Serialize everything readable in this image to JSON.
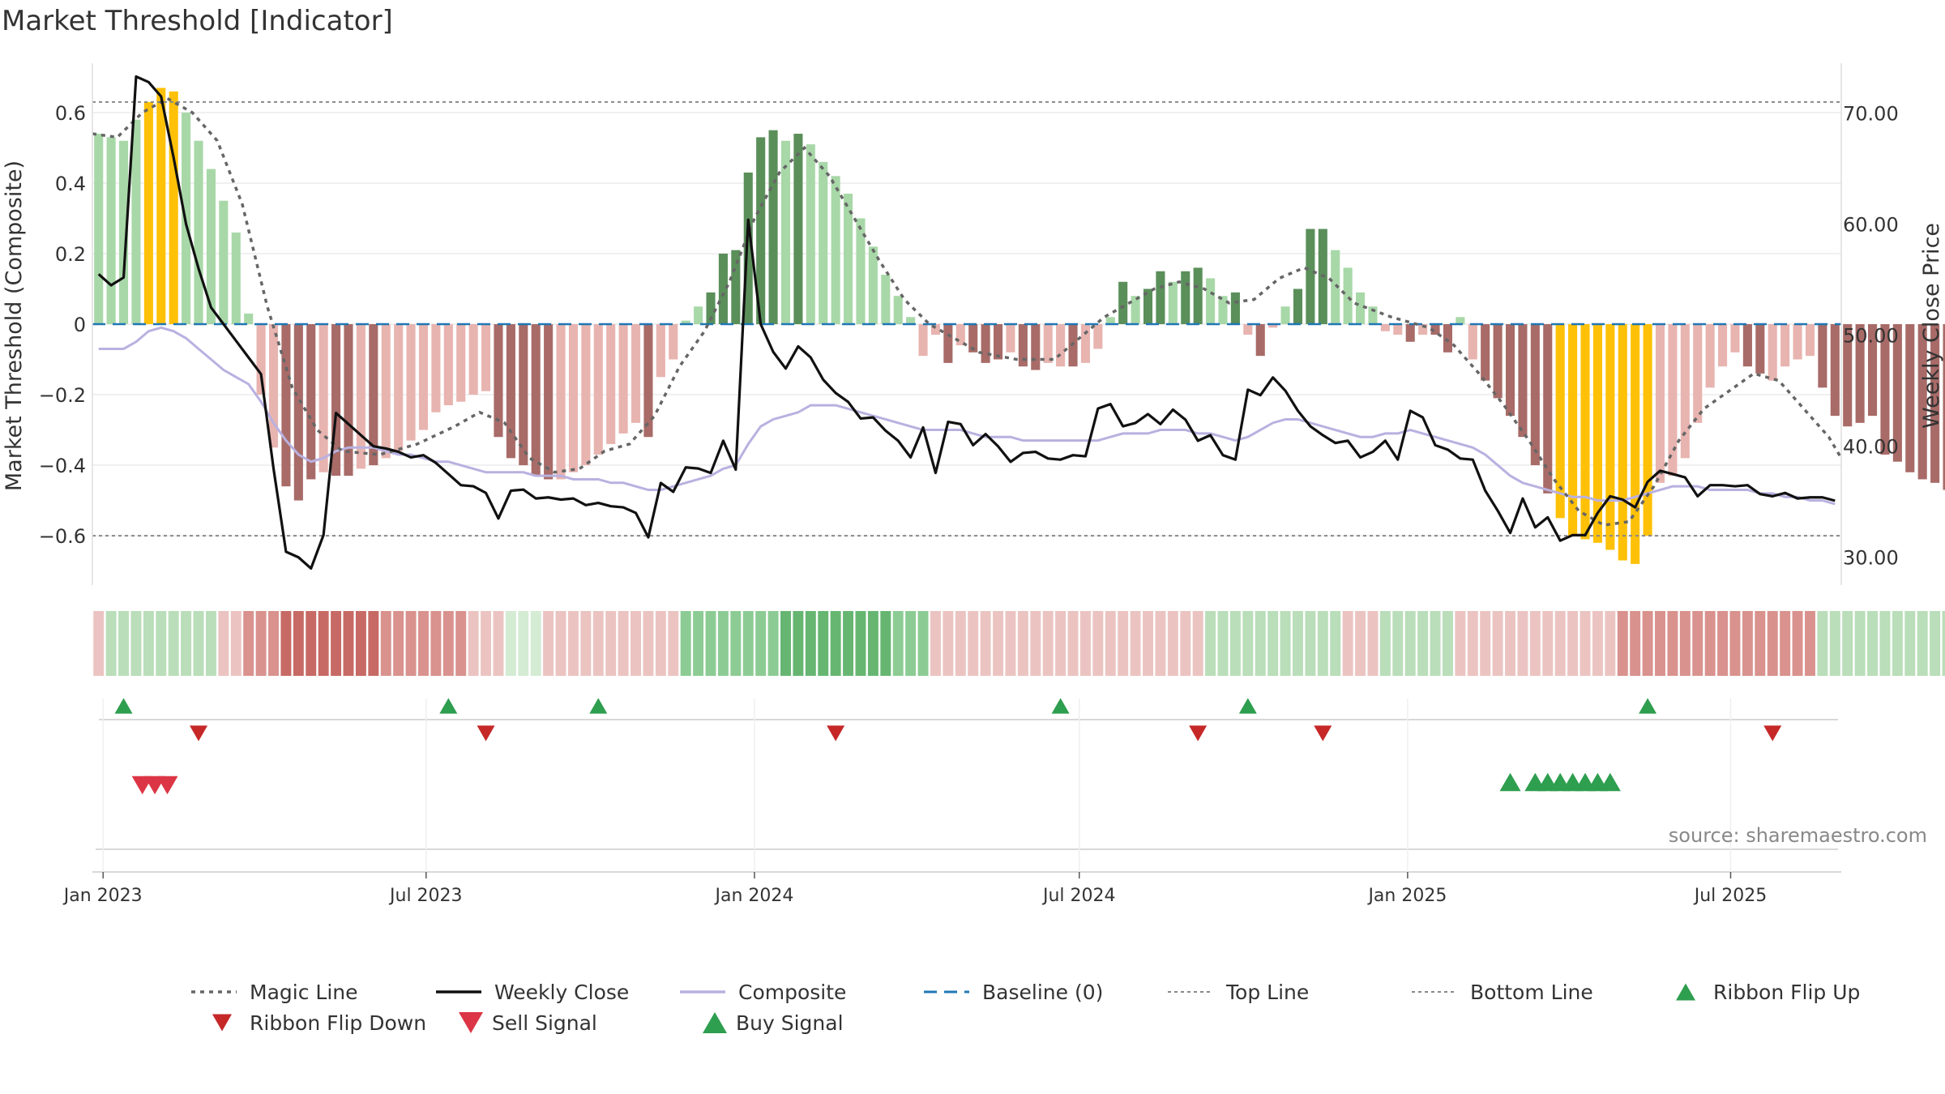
{
  "chart_data": {
    "type": "bar",
    "title": "Market Threshold [Indicator]",
    "ylabel": "Market Threshold (Composite)",
    "y2label": "Weekly Close Price",
    "source": "source: sharemaestro.com",
    "ylim": [
      -0.74,
      0.74
    ],
    "y2lim": [
      27.5,
      74.5
    ],
    "yticks": [
      0.6,
      0.4,
      0.2,
      0,
      -0.2,
      -0.4,
      -0.6
    ],
    "ytick_labels": [
      "0.6",
      "0.4",
      "0.2",
      "0",
      "−0.2",
      "−0.4",
      "−0.6"
    ],
    "y2ticks": [
      70,
      60,
      50,
      40,
      30
    ],
    "y2tick_labels": [
      "70.00",
      "60.00",
      "50.00",
      "40.00",
      "30.00"
    ],
    "x_start": "2022-12-26",
    "x_end": "2025-09-01",
    "weeks": 140,
    "x_ticks": [
      {
        "date": "2023-01-01",
        "label": "Jan 2023"
      },
      {
        "date": "2023-07-01",
        "label": "Jul 2023"
      },
      {
        "date": "2024-01-01",
        "label": "Jan 2024"
      },
      {
        "date": "2024-07-01",
        "label": "Jul 2024"
      },
      {
        "date": "2025-01-01",
        "label": "Jan 2025"
      },
      {
        "date": "2025-07-01",
        "label": "Jul 2025"
      }
    ],
    "top_line": 0.63,
    "bottom_line": -0.6,
    "baseline": 0,
    "colors": {
      "light_green": "#a8d8a8",
      "dark_green": "#5a8f5a",
      "light_red": "#e8b4b0",
      "dark_red": "#a86b68",
      "extreme": "#ffc107",
      "close": "#111111",
      "composite": "#b9b1e0",
      "magic": "#666666",
      "baseline": "#1f77b4",
      "buy": "#2e9e4f",
      "sell": "#dc3545",
      "flip_down": "#c62828"
    },
    "bar_series": [
      {
        "start": 0,
        "values": [
          0.54,
          0.53,
          0.52,
          0.58,
          0.63,
          0.67,
          0.66,
          0.6,
          0.52,
          0.44,
          0.35,
          0.26,
          0.03
        ],
        "class": [
          "lg",
          "lg",
          "lg",
          "lg",
          "ex",
          "ex",
          "ex",
          "lg",
          "lg",
          "lg",
          "lg",
          "lg",
          "lg"
        ]
      },
      {
        "start": 13,
        "values": [
          -0.2,
          -0.35,
          -0.46,
          -0.5,
          -0.44,
          -0.42,
          -0.43,
          -0.43,
          -0.41,
          -0.4,
          -0.38,
          -0.36,
          -0.33,
          -0.3,
          -0.25,
          -0.23,
          -0.22,
          -0.2,
          -0.19,
          -0.32,
          -0.38,
          -0.4,
          -0.43,
          -0.44,
          -0.44,
          -0.42,
          -0.4,
          -0.37,
          -0.34,
          -0.31,
          -0.28,
          -0.32,
          -0.15,
          -0.1
        ],
        "class": [
          "lr",
          "lr",
          "dr",
          "dr",
          "dr",
          "lr",
          "dr",
          "dr",
          "lr",
          "dr",
          "lr",
          "lr",
          "lr",
          "lr",
          "lr",
          "lr",
          "lr",
          "lr",
          "lr",
          "dr",
          "dr",
          "dr",
          "dr",
          "dr",
          "lr",
          "lr",
          "lr",
          "lr",
          "lr",
          "lr",
          "lr",
          "dr",
          "lr",
          "lr"
        ]
      },
      {
        "start": 47,
        "values": [
          0.01,
          0.05,
          0.09,
          0.2,
          0.21,
          0.43,
          0.53,
          0.55,
          0.52,
          0.54,
          0.51,
          0.46,
          0.42,
          0.37,
          0.3,
          0.22,
          0.14,
          0.08,
          0.02
        ],
        "class": [
          "lg",
          "lg",
          "dg",
          "dg",
          "dg",
          "dg",
          "dg",
          "dg",
          "lg",
          "dg",
          "lg",
          "lg",
          "lg",
          "lg",
          "lg",
          "lg",
          "lg",
          "lg",
          "lg"
        ]
      },
      {
        "start": 66,
        "values": [
          -0.09,
          -0.03,
          -0.11,
          -0.06,
          -0.08,
          -0.11,
          -0.1,
          -0.08,
          -0.12,
          -0.13,
          -0.11,
          -0.12,
          -0.12,
          -0.11,
          -0.07
        ],
        "class": [
          "lr",
          "lr",
          "dr",
          "lr",
          "dr",
          "dr",
          "dr",
          "lr",
          "dr",
          "dr",
          "lr",
          "lr",
          "dr",
          "lr",
          "lr"
        ]
      },
      {
        "start": 81,
        "values": [
          0.02,
          0.12,
          0.08,
          0.1,
          0.15,
          0.12,
          0.15,
          0.16,
          0.13,
          0.08,
          0.09
        ],
        "class": [
          "lg",
          "dg",
          "lg",
          "dg",
          "dg",
          "lg",
          "dg",
          "dg",
          "lg",
          "lg",
          "dg"
        ]
      },
      {
        "start": 92,
        "values": [
          -0.03,
          -0.09,
          -0.01,
          0.05,
          0.1,
          0.27,
          0.27,
          0.21,
          0.16,
          0.09,
          0.05
        ],
        "class": [
          "lr",
          "dr",
          "lr",
          "lg",
          "dg",
          "dg",
          "dg",
          "lg",
          "lg",
          "lg",
          "lg"
        ]
      },
      {
        "start": 103,
        "values": [
          -0.02,
          -0.03,
          -0.05,
          -0.03,
          -0.03,
          -0.08,
          0.02
        ],
        "class": [
          "lr",
          "lr",
          "dr",
          "lr",
          "dr",
          "dr",
          "lg"
        ]
      },
      {
        "start": 110,
        "values": [
          -0.1,
          -0.16,
          -0.21,
          -0.26,
          -0.32,
          -0.4,
          -0.48,
          -0.55,
          -0.6,
          -0.61,
          -0.62,
          -0.64,
          -0.67,
          -0.68,
          -0.6,
          -0.45,
          -0.43,
          -0.38,
          -0.28,
          -0.18,
          -0.12,
          -0.08,
          -0.12,
          -0.14,
          -0.16,
          -0.12,
          -0.1,
          -0.09,
          -0.18,
          -0.26,
          -0.29,
          -0.28,
          -0.26,
          -0.37,
          -0.39,
          -0.42,
          -0.44,
          -0.45,
          -0.47
        ],
        "class": [
          "lr",
          "dr",
          "dr",
          "dr",
          "dr",
          "dr",
          "dr",
          "ex",
          "ex",
          "ex",
          "ex",
          "ex",
          "ex",
          "ex",
          "ex",
          "lr",
          "lr",
          "lr",
          "lr",
          "lr",
          "lr",
          "lr",
          "dr",
          "dr",
          "lr",
          "lr",
          "lr",
          "lr",
          "dr",
          "dr",
          "dr",
          "dr",
          "dr",
          "dr",
          "dr",
          "dr",
          "dr",
          "dr",
          "dr"
        ]
      }
    ],
    "weekly_close": [
      55.5,
      54.5,
      55.2,
      73.3,
      72.8,
      71.5,
      66.0,
      60.0,
      56.0,
      52.5,
      51.0,
      49.5,
      48.0,
      46.5,
      38.0,
      30.5,
      30.0,
      29.0,
      32.0,
      43.0,
      42.0,
      41.0,
      40.0,
      39.8,
      39.5,
      39.0,
      39.2,
      38.5,
      37.5,
      36.5,
      36.4,
      35.8,
      33.5,
      36.0,
      36.1,
      35.3,
      35.4,
      35.2,
      35.3,
      34.7,
      34.9,
      34.6,
      34.5,
      34.0,
      31.8,
      36.7,
      35.9,
      38.1,
      38.0,
      37.6,
      40.5,
      37.9,
      60.4,
      51.0,
      48.5,
      47.0,
      49.0,
      48.0,
      46.0,
      44.8,
      44.0,
      42.5,
      42.6,
      41.4,
      40.5,
      39.0,
      41.7,
      37.6,
      42.2,
      42.0,
      40.1,
      41.1,
      40.0,
      38.6,
      39.4,
      39.5,
      38.9,
      38.8,
      39.2,
      39.1,
      43.4,
      43.8,
      41.8,
      42.1,
      42.9,
      42.0,
      43.3,
      42.4,
      40.5,
      41.0,
      39.2,
      38.8,
      45.1,
      44.6,
      46.2,
      45.0,
      43.2,
      41.8,
      41.0,
      40.3,
      40.5,
      39.0,
      39.5,
      40.5,
      38.8,
      43.2,
      42.6,
      40.1,
      39.7,
      38.9,
      38.8,
      36.0,
      34.2,
      32.2,
      35.3,
      32.7,
      33.6,
      31.5,
      32.0,
      32.0,
      34.0,
      35.5,
      35.2,
      34.5,
      36.8,
      37.8,
      37.5,
      37.2,
      35.5,
      36.5,
      36.5,
      36.4,
      36.5,
      35.7,
      35.5,
      35.8,
      35.3,
      35.4,
      35.4,
      35.1
    ],
    "composite": [
      -0.07,
      -0.07,
      -0.07,
      -0.05,
      -0.02,
      -0.01,
      -0.02,
      -0.04,
      -0.07,
      -0.1,
      -0.13,
      -0.15,
      -0.17,
      -0.22,
      -0.28,
      -0.33,
      -0.37,
      -0.39,
      -0.38,
      -0.36,
      -0.35,
      -0.35,
      -0.35,
      -0.36,
      -0.37,
      -0.37,
      -0.38,
      -0.39,
      -0.39,
      -0.4,
      -0.41,
      -0.42,
      -0.42,
      -0.42,
      -0.42,
      -0.43,
      -0.43,
      -0.43,
      -0.44,
      -0.44,
      -0.44,
      -0.45,
      -0.45,
      -0.46,
      -0.47,
      -0.47,
      -0.46,
      -0.45,
      -0.44,
      -0.43,
      -0.41,
      -0.4,
      -0.34,
      -0.29,
      -0.27,
      -0.26,
      -0.25,
      -0.23,
      -0.23,
      -0.23,
      -0.24,
      -0.25,
      -0.26,
      -0.27,
      -0.28,
      -0.29,
      -0.3,
      -0.3,
      -0.3,
      -0.3,
      -0.31,
      -0.32,
      -0.32,
      -0.32,
      -0.33,
      -0.33,
      -0.33,
      -0.33,
      -0.33,
      -0.33,
      -0.33,
      -0.32,
      -0.31,
      -0.31,
      -0.31,
      -0.3,
      -0.3,
      -0.3,
      -0.31,
      -0.31,
      -0.32,
      -0.33,
      -0.32,
      -0.3,
      -0.28,
      -0.27,
      -0.27,
      -0.28,
      -0.29,
      -0.3,
      -0.31,
      -0.32,
      -0.32,
      -0.31,
      -0.31,
      -0.3,
      -0.31,
      -0.32,
      -0.33,
      -0.34,
      -0.35,
      -0.37,
      -0.4,
      -0.43,
      -0.45,
      -0.46,
      -0.47,
      -0.48,
      -0.49,
      -0.49,
      -0.5,
      -0.5,
      -0.5,
      -0.49,
      -0.48,
      -0.47,
      -0.46,
      -0.46,
      -0.46,
      -0.47,
      -0.47,
      -0.47,
      -0.47,
      -0.48,
      -0.48,
      -0.49,
      -0.49,
      -0.5,
      -0.5,
      -0.51
    ],
    "magic_line": [
      {
        "w": 0,
        "v": 0.54
      },
      {
        "w": 2,
        "v": 0.53
      },
      {
        "w": 4,
        "v": 0.6
      },
      {
        "w": 6,
        "v": 0.64
      },
      {
        "w": 8,
        "v": 0.6
      },
      {
        "w": 10,
        "v": 0.52
      },
      {
        "w": 12,
        "v": 0.34
      },
      {
        "w": 14,
        "v": 0.05
      },
      {
        "w": 16,
        "v": -0.18
      },
      {
        "w": 18,
        "v": -0.3
      },
      {
        "w": 20,
        "v": -0.36
      },
      {
        "w": 23,
        "v": -0.37
      },
      {
        "w": 26,
        "v": -0.34
      },
      {
        "w": 29,
        "v": -0.29
      },
      {
        "w": 31,
        "v": -0.25
      },
      {
        "w": 33,
        "v": -0.28
      },
      {
        "w": 35,
        "v": -0.38
      },
      {
        "w": 37,
        "v": -0.42
      },
      {
        "w": 39,
        "v": -0.41
      },
      {
        "w": 41,
        "v": -0.36
      },
      {
        "w": 43,
        "v": -0.34
      },
      {
        "w": 45,
        "v": -0.26
      },
      {
        "w": 47,
        "v": -0.12
      },
      {
        "w": 49,
        "v": -0.02
      },
      {
        "w": 51,
        "v": 0.12
      },
      {
        "w": 53,
        "v": 0.3
      },
      {
        "w": 55,
        "v": 0.43
      },
      {
        "w": 57,
        "v": 0.5
      },
      {
        "w": 59,
        "v": 0.42
      },
      {
        "w": 61,
        "v": 0.3
      },
      {
        "w": 63,
        "v": 0.18
      },
      {
        "w": 65,
        "v": 0.07
      },
      {
        "w": 67,
        "v": 0.0
      },
      {
        "w": 69,
        "v": -0.04
      },
      {
        "w": 71,
        "v": -0.08
      },
      {
        "w": 74,
        "v": -0.1
      },
      {
        "w": 77,
        "v": -0.1
      },
      {
        "w": 79,
        "v": -0.04
      },
      {
        "w": 81,
        "v": 0.02
      },
      {
        "w": 83,
        "v": 0.06
      },
      {
        "w": 85,
        "v": 0.1
      },
      {
        "w": 87,
        "v": 0.12
      },
      {
        "w": 89,
        "v": 0.1
      },
      {
        "w": 91,
        "v": 0.06
      },
      {
        "w": 93,
        "v": 0.07
      },
      {
        "w": 95,
        "v": 0.13
      },
      {
        "w": 97,
        "v": 0.16
      },
      {
        "w": 99,
        "v": 0.13
      },
      {
        "w": 101,
        "v": 0.06
      },
      {
        "w": 104,
        "v": 0.02
      },
      {
        "w": 107,
        "v": -0.01
      },
      {
        "w": 109,
        "v": -0.06
      },
      {
        "w": 111,
        "v": -0.14
      },
      {
        "w": 113,
        "v": -0.23
      },
      {
        "w": 115,
        "v": -0.33
      },
      {
        "w": 117,
        "v": -0.44
      },
      {
        "w": 119,
        "v": -0.53
      },
      {
        "w": 121,
        "v": -0.57
      },
      {
        "w": 123,
        "v": -0.56
      },
      {
        "w": 125,
        "v": -0.46
      },
      {
        "w": 127,
        "v": -0.33
      },
      {
        "w": 129,
        "v": -0.24
      },
      {
        "w": 131,
        "v": -0.19
      },
      {
        "w": 133,
        "v": -0.14
      },
      {
        "w": 135,
        "v": -0.16
      },
      {
        "w": 137,
        "v": -0.24
      },
      {
        "w": 139,
        "v": -0.32
      },
      {
        "w": 140,
        "v": -0.38
      }
    ],
    "ribbon": [
      "lr",
      "lg",
      "lg",
      "lg",
      "lg",
      "lg",
      "lg",
      "lg",
      "lg",
      "lg",
      "lr",
      "lr",
      "mr",
      "mr",
      "mr",
      "dr",
      "dr",
      "dr",
      "dr",
      "dr",
      "dr",
      "dr",
      "dr",
      "mr",
      "mr",
      "mr",
      "mr",
      "mr",
      "mr",
      "mr",
      "lr",
      "lr",
      "lr",
      "vg",
      "vg",
      "vg",
      "lr",
      "lr",
      "lr",
      "lr",
      "lr",
      "lr",
      "lr",
      "lr",
      "lr",
      "lr",
      "lr",
      "mg",
      "mg",
      "mg",
      "mg",
      "mg",
      "mg",
      "mg",
      "mg",
      "dg",
      "dg",
      "dg",
      "dg",
      "dg",
      "dg",
      "dg",
      "dg",
      "dg",
      "mg",
      "mg",
      "mg",
      "lr",
      "lr",
      "lr",
      "lr",
      "lr",
      "lr",
      "lr",
      "lr",
      "lr",
      "lr",
      "lr",
      "lr",
      "lr",
      "lr",
      "lr",
      "lr",
      "lr",
      "lr",
      "lr",
      "lr",
      "lr",
      "lr",
      "lg",
      "lg",
      "lg",
      "lg",
      "lg",
      "lg",
      "lg",
      "lg",
      "lg",
      "lg",
      "lg",
      "lr",
      "lr",
      "lr",
      "lg",
      "lg",
      "lg",
      "lg",
      "lg",
      "lg",
      "lr",
      "lr",
      "lr",
      "lr",
      "lr",
      "lr",
      "lr",
      "lr",
      "lr",
      "lr",
      "lr",
      "lr",
      "lr",
      "mr",
      "mr",
      "mr",
      "mr",
      "mr",
      "mr",
      "mr",
      "mr",
      "mr",
      "mr",
      "mr",
      "mr",
      "mr",
      "mr",
      "mr",
      "mr",
      "lg",
      "lg",
      "lg",
      "lg",
      "lg",
      "lg",
      "lg",
      "lg",
      "lg",
      "lg",
      "lg",
      "lg",
      "lg",
      "lr",
      "lr",
      "lr",
      "lr",
      "lr",
      "lr"
    ],
    "ribbon_flip_up_weeks": [
      2,
      28,
      40,
      77,
      92,
      124
    ],
    "ribbon_flip_down_weeks": [
      8,
      31,
      59,
      88,
      98,
      134
    ],
    "sell_signal_weeks": [
      3.5,
      4.5,
      5.5
    ],
    "buy_signal_weeks": [
      113,
      115,
      116,
      117,
      118,
      119,
      120,
      121
    ],
    "legend": [
      {
        "label": "Magic Line",
        "kind": "dotted",
        "color": "#666666"
      },
      {
        "label": "Weekly Close",
        "kind": "solid",
        "color": "#111111"
      },
      {
        "label": "Composite",
        "kind": "solid",
        "color": "#b9b1e0"
      },
      {
        "label": "Baseline (0)",
        "kind": "dashed",
        "color": "#1f77b4"
      },
      {
        "label": "Top Line",
        "kind": "fine-dotted",
        "color": "#888888"
      },
      {
        "label": "Bottom Line",
        "kind": "fine-dotted",
        "color": "#888888"
      },
      {
        "label": "Ribbon Flip Up",
        "kind": "tri-up",
        "color": "#2e9e4f"
      },
      {
        "label": "Ribbon Flip Down",
        "kind": "tri-down",
        "color": "#c62828"
      },
      {
        "label": "Sell Signal",
        "kind": "tri-down-big",
        "color": "#dc3545"
      },
      {
        "label": "Buy Signal",
        "kind": "tri-up-big",
        "color": "#2e9e4f"
      }
    ]
  }
}
